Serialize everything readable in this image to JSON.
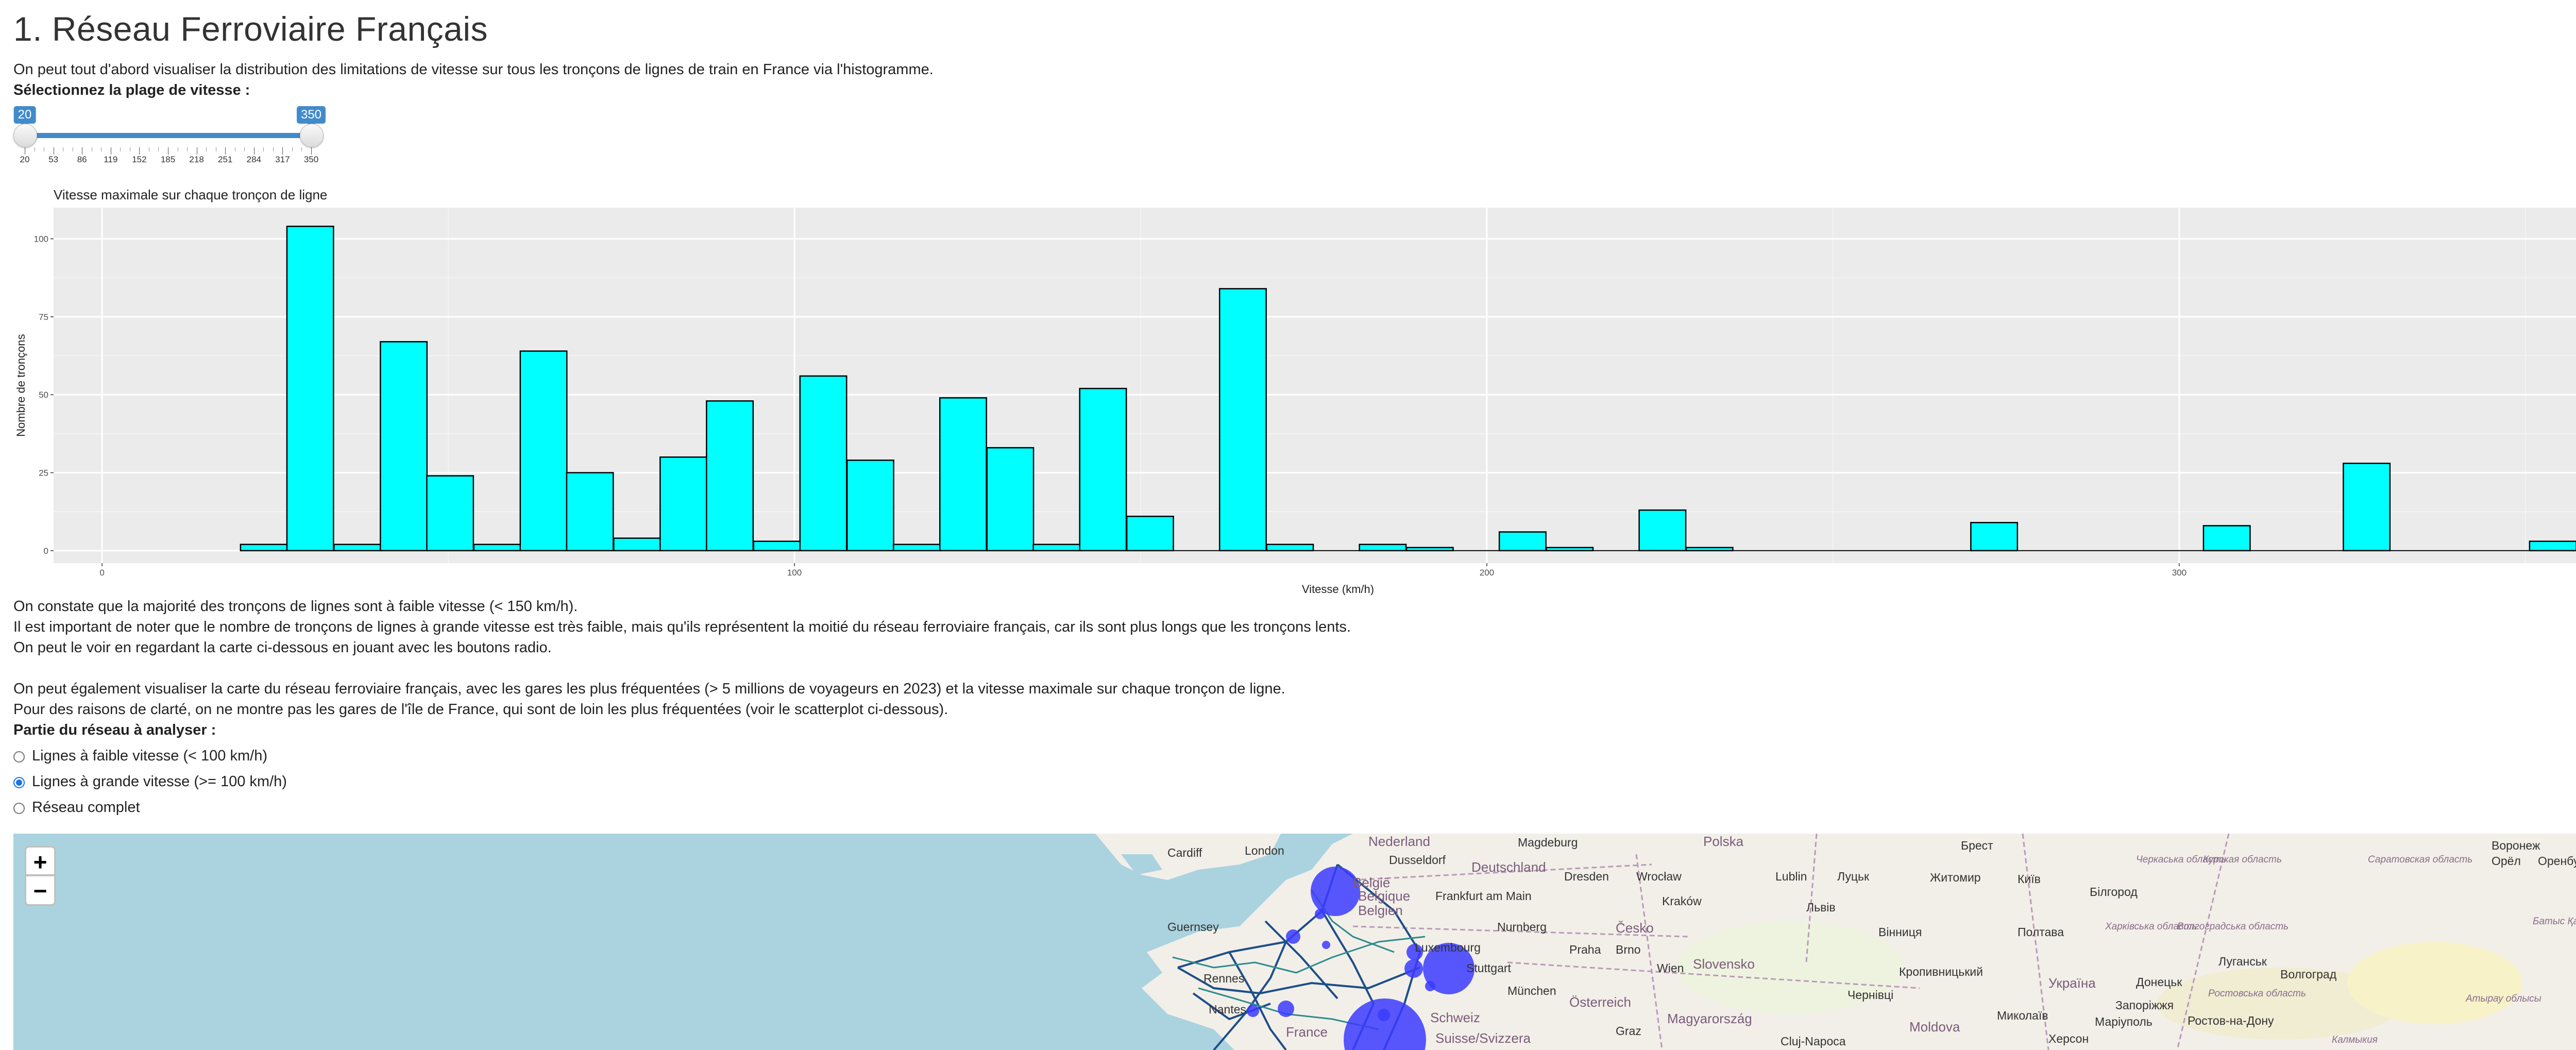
{
  "header": {
    "title": "1. Réseau Ferroviaire Français",
    "intro": "On peut tout d'abord visualiser la distribution des limitations de vitesse sur tous les tronçons de lignes de train en France via l'histogramme."
  },
  "slider": {
    "label": "Sélectionnez la plage de vitesse :",
    "min": 20,
    "max": 350,
    "from": 20,
    "to": 350,
    "from_label": "20",
    "to_label": "350",
    "tick_labels": [
      "20",
      "53",
      "86",
      "119",
      "152",
      "185",
      "218",
      "251",
      "284",
      "317",
      "350"
    ],
    "accent": "#428bca"
  },
  "chart_data": {
    "type": "bar",
    "title": "Vitesse maximale sur chaque tronçon de ligne",
    "xlabel": "Vitesse (km/h)",
    "ylabel": "Nombre de tronçons",
    "xlim": [
      -7,
      364
    ],
    "ylim": [
      -4,
      110
    ],
    "bin_width": 6.73,
    "x_ticks": [
      0,
      100,
      200,
      300
    ],
    "x_tick_labels": [
      "0",
      "100",
      "200",
      "300"
    ],
    "y_ticks": [
      0,
      25,
      50,
      75,
      100
    ],
    "y_tick_labels": [
      "0",
      "25",
      "50",
      "75",
      "100"
    ],
    "grid": true,
    "bar_color": "#00ffff",
    "bars": [
      {
        "x": 20,
        "y": 2
      },
      {
        "x": 26.7,
        "y": 104
      },
      {
        "x": 33.5,
        "y": 2
      },
      {
        "x": 40.2,
        "y": 67
      },
      {
        "x": 46.9,
        "y": 24
      },
      {
        "x": 53.7,
        "y": 2
      },
      {
        "x": 60.4,
        "y": 64
      },
      {
        "x": 67.1,
        "y": 25
      },
      {
        "x": 73.9,
        "y": 4
      },
      {
        "x": 80.6,
        "y": 30
      },
      {
        "x": 87.3,
        "y": 48
      },
      {
        "x": 94.1,
        "y": 3
      },
      {
        "x": 100.8,
        "y": 56
      },
      {
        "x": 107.6,
        "y": 29
      },
      {
        "x": 114.3,
        "y": 2
      },
      {
        "x": 121,
        "y": 49
      },
      {
        "x": 127.8,
        "y": 33
      },
      {
        "x": 134.5,
        "y": 2
      },
      {
        "x": 141.2,
        "y": 52
      },
      {
        "x": 148,
        "y": 11
      },
      {
        "x": 161.4,
        "y": 84
      },
      {
        "x": 168.2,
        "y": 2
      },
      {
        "x": 181.6,
        "y": 2
      },
      {
        "x": 188.4,
        "y": 1
      },
      {
        "x": 201.8,
        "y": 6
      },
      {
        "x": 208.6,
        "y": 1
      },
      {
        "x": 222,
        "y": 13
      },
      {
        "x": 228.8,
        "y": 1
      },
      {
        "x": 269.9,
        "y": 9
      },
      {
        "x": 303.5,
        "y": 8
      },
      {
        "x": 323.7,
        "y": 28
      },
      {
        "x": 350.6,
        "y": 3
      }
    ]
  },
  "text_after_chart": [
    "On constate que la majorité des tronçons de lignes sont à faible vitesse (< 150 km/h).",
    "Il est important de noter que le nombre de tronçons de lignes à grande vitesse est très faible, mais qu'ils représentent la moitié du réseau ferroviaire français, car ils sont plus longs que les tronçons lents.",
    "On peut le voir en regardant la carte ci-dessous en jouant avec les boutons radio."
  ],
  "text_map_intro": [
    "On peut également visualiser la carte du réseau ferroviaire français, avec les gares les plus fréquentées (> 5 millions de voyageurs en 2023) et la vitesse maximale sur chaque tronçon de ligne.",
    "Pour des raisons de clarté, on ne montre pas les gares de l'île de France, qui sont de loin les plus fréquentées (voir le scatterplot ci-dessous)."
  ],
  "radio_group": {
    "label": "Partie du réseau à analyser :",
    "options": [
      {
        "label": "Lignes à faible vitesse (< 100 km/h)",
        "selected": false
      },
      {
        "label": "Lignes à grande vitesse (>= 100 km/h)",
        "selected": true
      },
      {
        "label": "Réseau complet",
        "selected": false
      }
    ]
  },
  "map": {
    "zoom_in": "+",
    "zoom_out": "−",
    "labels": [
      "Nederland",
      "Magdeburg",
      "Polska",
      "Брест",
      "Воронеж",
      "Cardiff",
      "London",
      "Dusseldorf",
      "Deutschland",
      "Dresden",
      "Wrocław",
      "Lublin",
      "Луцьк",
      "Житомир",
      "Київ",
      "Черкаська область",
      "Білгород",
      "Курская область",
      "Орёл",
      "Оренбург",
      "Guernsey",
      "België",
      "Belgique",
      "Belgien",
      "Frankfurt am Main",
      "Nurnberg",
      "Česko",
      "Kraków",
      "Львів",
      "Вінниця",
      "Полтава",
      "Харківська область",
      "Волгоградська область",
      "Luxembourg",
      "Stuttgart",
      "Praha",
      "Brno",
      "Wien",
      "Slovensko",
      "Кропивницький",
      "Україна",
      "Донецьк",
      "Луганськ",
      "Волгоград",
      "Rennes",
      "Nantes",
      "France",
      "München",
      "Österreich",
      "Magyarország",
      "Чернівці",
      "Запоріжжя",
      "Ростовська область",
      "Schweiz",
      "Suisse/Svizzera",
      "Graz",
      "Moldova",
      "Миколаїв",
      "Маріуполь",
      "Ростов-на-Дону",
      "Атырау облысы",
      "Cluj-Napoca",
      "Херсон",
      "Калмыкия",
      "Саратовская область",
      "Батыс Қазақстан облысы"
    ]
  }
}
